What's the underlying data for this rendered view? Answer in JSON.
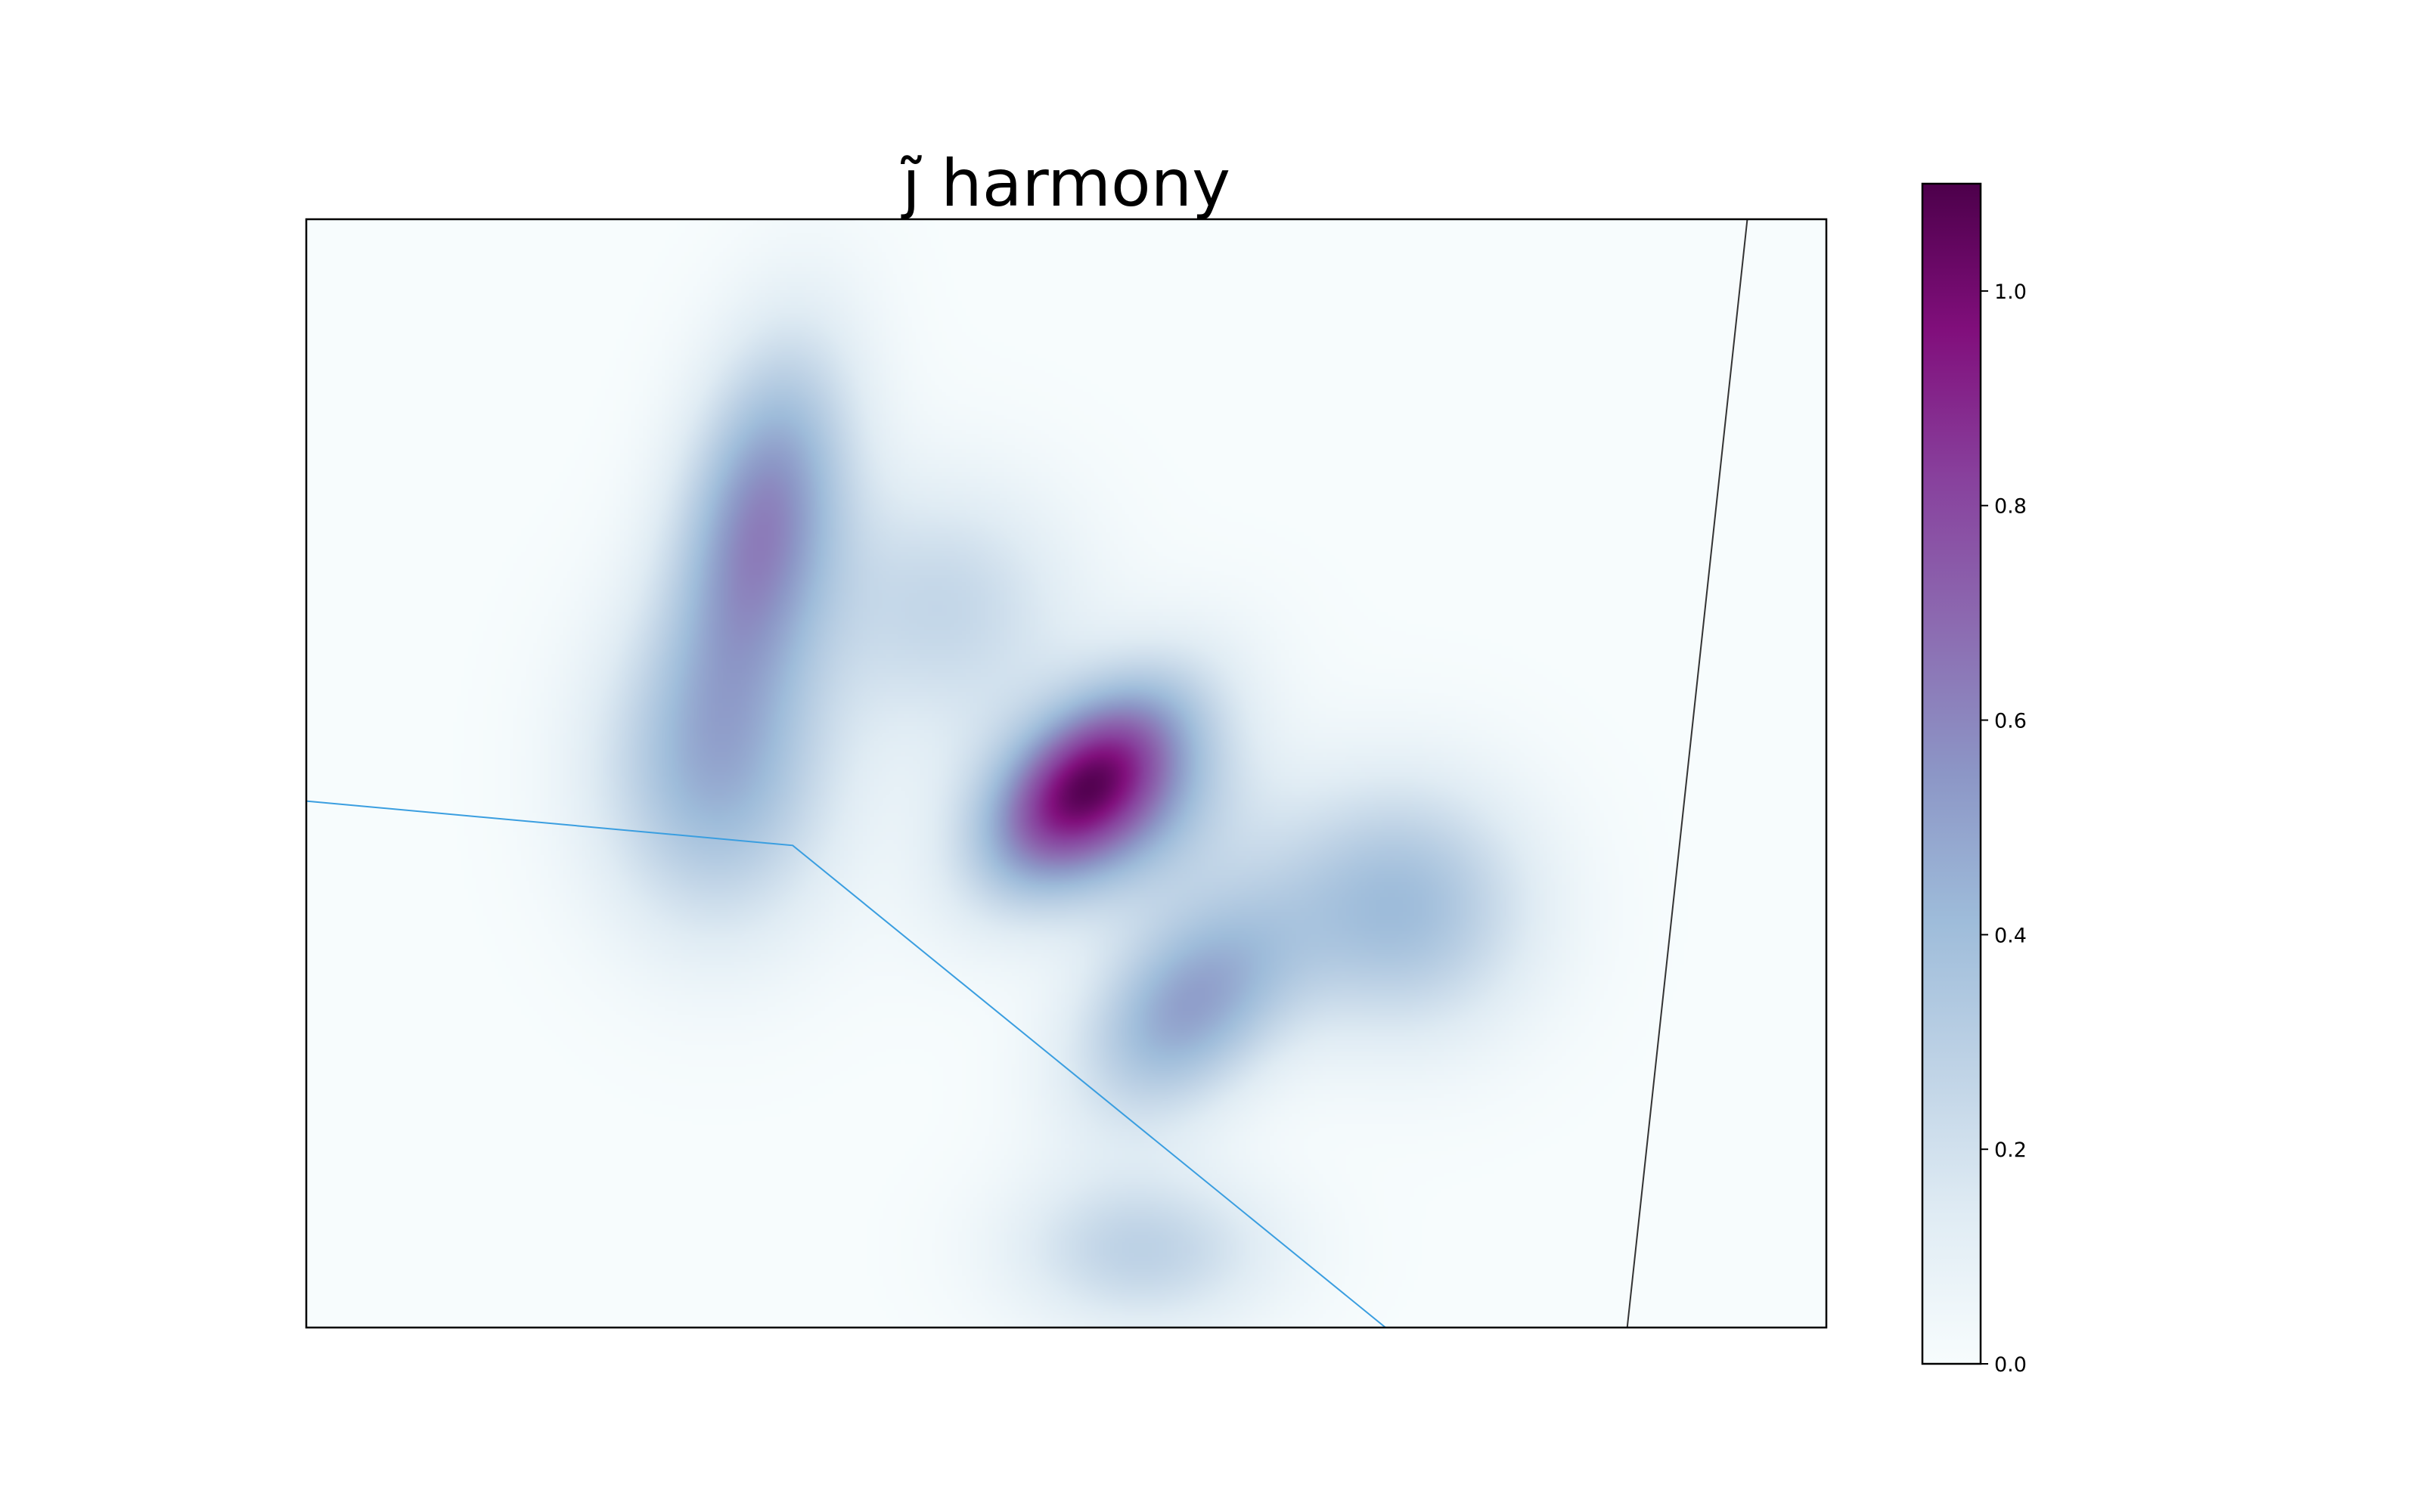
{
  "chart_data": {
    "type": "heatmap",
    "title": "j̃ harmony",
    "xlabel": "",
    "ylabel": "",
    "colormap": "BuPu",
    "colormap_stops": [
      "#f7fcfd",
      "#e0ecf4",
      "#bfd3e6",
      "#9ebcda",
      "#8c96c6",
      "#8c6bb1",
      "#88419d",
      "#810f7c",
      "#4d004b"
    ],
    "colorbar": {
      "range": [
        0.0,
        1.1
      ],
      "ticks": [
        0.0,
        0.2,
        0.4,
        0.6,
        0.8,
        1.0
      ],
      "tick_labels": [
        "0.0",
        "0.2",
        "0.4",
        "0.6",
        "0.8",
        "1.0"
      ]
    },
    "axes_ticks_visible": false,
    "grid": false,
    "density_blobs": [
      {
        "cx": 0.3,
        "cy": 0.27,
        "sx": 0.04,
        "sy": 0.11,
        "rho": -0.3,
        "amp": 0.58
      },
      {
        "cx": 0.27,
        "cy": 0.5,
        "sx": 0.055,
        "sy": 0.1,
        "rho": 0.0,
        "amp": 0.42
      },
      {
        "cx": 0.53,
        "cy": 0.53,
        "sx": 0.06,
        "sy": 0.06,
        "rho": 0.0,
        "amp": 0.3
      },
      {
        "cx": 0.52,
        "cy": 0.51,
        "sx": 0.055,
        "sy": 0.075,
        "rho": -0.5,
        "amp": 0.45
      },
      {
        "cx": 0.51,
        "cy": 0.51,
        "sx": 0.04,
        "sy": 0.055,
        "rho": -0.55,
        "amp": 0.35
      },
      {
        "cx": 0.58,
        "cy": 0.71,
        "sx": 0.05,
        "sy": 0.07,
        "rho": -0.4,
        "amp": 0.5
      },
      {
        "cx": 0.72,
        "cy": 0.62,
        "sx": 0.06,
        "sy": 0.08,
        "rho": 0.0,
        "amp": 0.4
      },
      {
        "cx": 0.55,
        "cy": 0.93,
        "sx": 0.06,
        "sy": 0.05,
        "rho": 0.0,
        "amp": 0.28
      },
      {
        "cx": 0.42,
        "cy": 0.35,
        "sx": 0.06,
        "sy": 0.08,
        "rho": 0.0,
        "amp": 0.25
      }
    ],
    "overlay_lines": [
      {
        "name": "",
        "color": "#3a9ee0",
        "points": [
          [
            0.0,
            0.525
          ],
          [
            0.32,
            0.565
          ],
          [
            0.71,
            1.0
          ]
        ]
      },
      {
        "name": "",
        "color": "#333333",
        "points": [
          [
            0.948,
            0.0
          ],
          [
            0.869,
            1.0
          ]
        ]
      }
    ]
  }
}
